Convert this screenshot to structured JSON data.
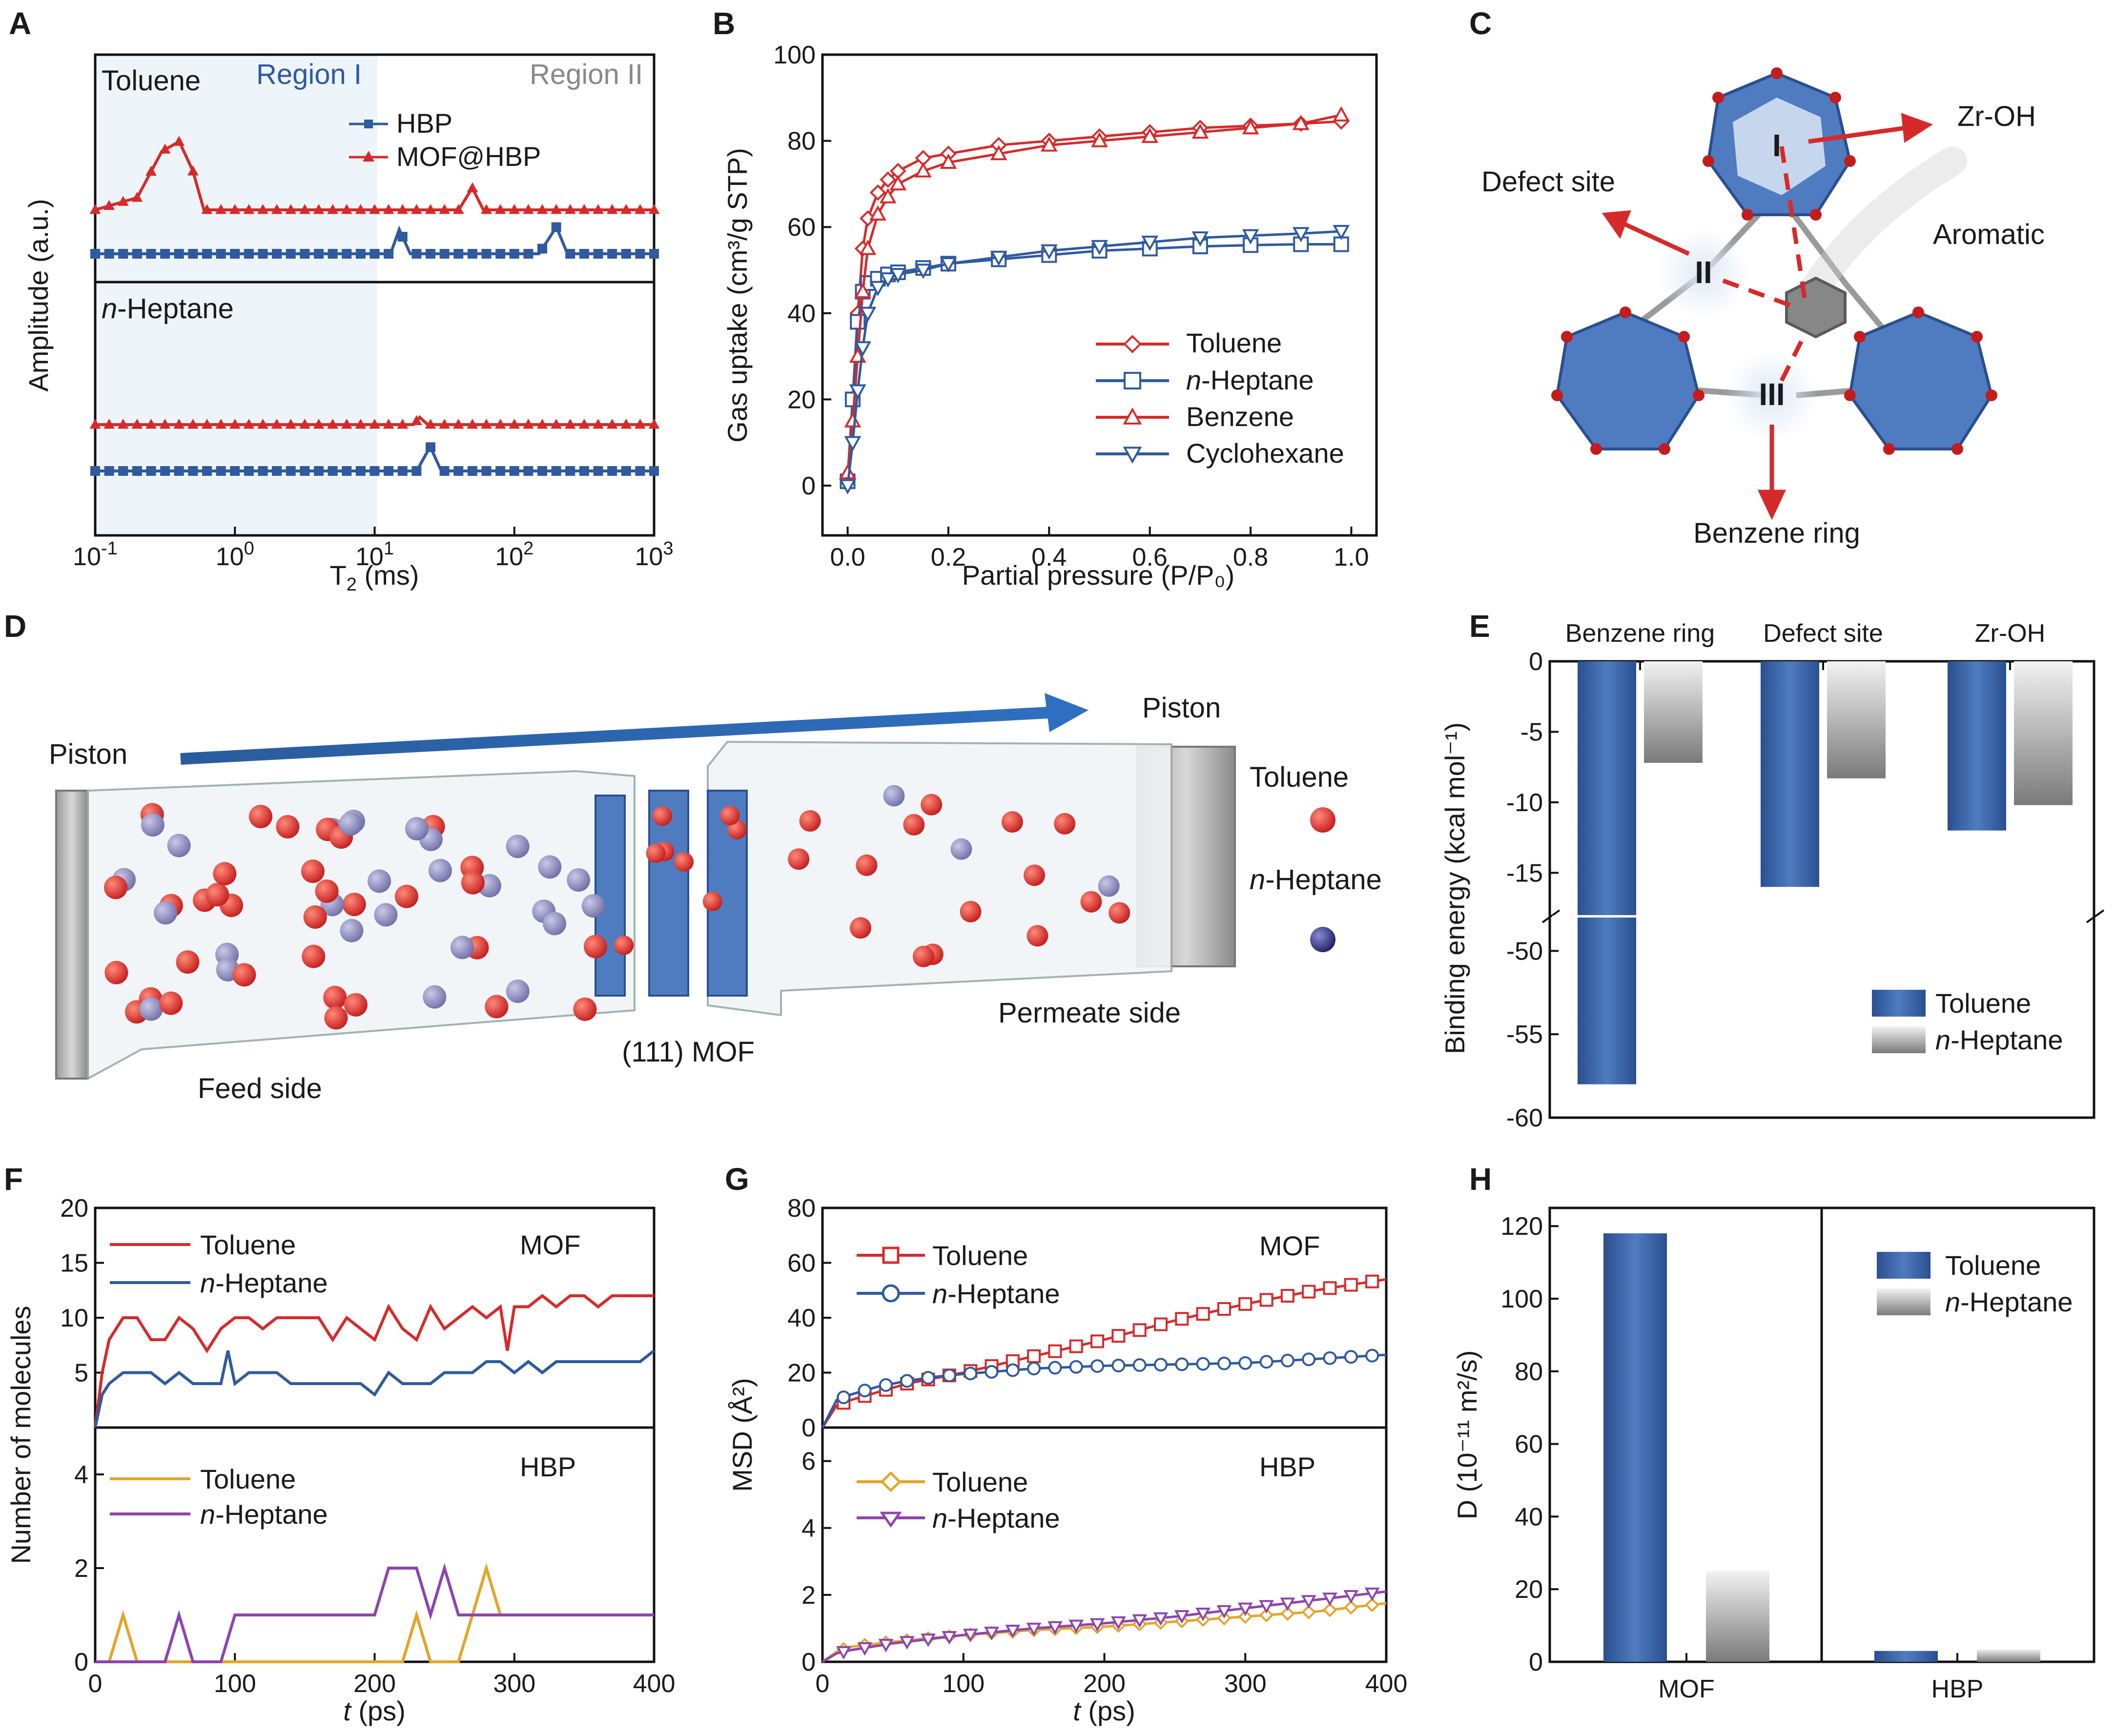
{
  "colors": {
    "red": "#d62a2a",
    "blue": "#2f5a9e",
    "gray": "#8a8a8a",
    "orange": "#e3a52a",
    "purple": "#8e44ad",
    "text": "#1a1a1a"
  },
  "panels": {
    "A": {
      "letter": "A",
      "top_label": "Toluene",
      "bottom_label_prefix": "n",
      "bottom_label_suffix": "-Heptane",
      "region1": "Region I",
      "region2": "Region II",
      "legend": [
        "HBP",
        "MOF@HBP"
      ],
      "ylabel": "Amplitude (a.u.)",
      "xlabel_main": "T",
      "xlabel_sub": "2",
      "xlabel_unit": " (ms)",
      "xtick_base": "10",
      "xtick_exps": [
        "-1",
        "0",
        "1",
        "2",
        "3"
      ]
    },
    "B": {
      "letter": "B",
      "ylabel": "Gas uptake (cm³/g STP)",
      "xlabel": "Partial pressure (P/P₀)",
      "legend": [
        "Toluene",
        "n-Heptane",
        "Benzene",
        "Cyclohexane"
      ],
      "yticks": [
        "0",
        "20",
        "40",
        "60",
        "80",
        "100"
      ],
      "xticks": [
        "0.0",
        "0.2",
        "0.4",
        "0.6",
        "0.8",
        "1.0"
      ]
    },
    "C": {
      "letter": "C",
      "labels": {
        "zroh": "Zr-OH",
        "defect": "Defect site",
        "aromatic": "Aromatic",
        "ring": "Benzene ring"
      },
      "sites": [
        "I",
        "II",
        "III"
      ]
    },
    "D": {
      "letter": "D",
      "piston_left": "Piston",
      "piston_right": "Piston",
      "toluene": "Toluene",
      "heptane_prefix": "n",
      "heptane_suffix": "-Heptane",
      "mof": "(111) MOF",
      "feed": "Feed side",
      "permeate": "Permeate side"
    },
    "E": {
      "letter": "E",
      "categories": [
        "Benzene ring",
        "Defect site",
        "Zr-OH"
      ],
      "ylabel": "Binding energy (kcal mol⁻¹)",
      "yticks_top": [
        "0",
        "-5",
        "-10",
        "-15"
      ],
      "yticks_bottom": [
        "-50",
        "-55",
        "-60"
      ],
      "legend": [
        "Toluene",
        "n-Heptane"
      ]
    },
    "F": {
      "letter": "F",
      "ylabel": "Number of molecules",
      "xlabel_prefix": "t",
      "xlabel_suffix": " (ps)",
      "top_tag": "MOF",
      "bottom_tag": "HBP",
      "legend_top": [
        "Toluene",
        "n-Heptane"
      ],
      "legend_bottom": [
        "Toluene",
        "n-Heptane"
      ],
      "yticks_top": [
        "5",
        "10",
        "15",
        "20"
      ],
      "yticks_bottom": [
        "0",
        "2",
        "4"
      ],
      "xticks": [
        "0",
        "100",
        "200",
        "300",
        "400"
      ]
    },
    "G": {
      "letter": "G",
      "ylabel": "MSD (Å²)",
      "xlabel_prefix": "t",
      "xlabel_suffix": " (ps)",
      "top_tag": "MOF",
      "bottom_tag": "HBP",
      "legend_top": [
        "Toluene",
        "n-Heptane"
      ],
      "legend_bottom": [
        "Toluene",
        "n-Heptane"
      ],
      "yticks_top": [
        "0",
        "20",
        "40",
        "60",
        "80"
      ],
      "yticks_bottom": [
        "0",
        "2",
        "4",
        "6"
      ],
      "xticks": [
        "0",
        "100",
        "200",
        "300",
        "400"
      ]
    },
    "H": {
      "letter": "H",
      "ylabel": "D (10⁻¹¹ m²/s)",
      "categories": [
        "MOF",
        "HBP"
      ],
      "legend": [
        "Toluene",
        "n-Heptane"
      ],
      "yticks": [
        "0",
        "20",
        "40",
        "60",
        "80",
        "100",
        "120"
      ]
    }
  },
  "chart_data": [
    {
      "panel": "A",
      "type": "line",
      "xlabel": "T2 (ms)",
      "ylabel": "Amplitude (a.u.)",
      "xscale": "log",
      "xlim": [
        0.1,
        1000
      ],
      "subplots": [
        {
          "label": "Toluene",
          "series": [
            {
              "name": "HBP",
              "x": [
                0.1,
                13,
                15,
                18,
                150,
                200,
                240,
                1000
              ],
              "y": [
                0,
                0,
                0.5,
                0,
                0,
                0.55,
                0,
                0
              ]
            },
            {
              "name": "MOF@HBP",
              "x": [
                0.1,
                0.2,
                0.3,
                0.4,
                0.5,
                0.6,
                0.7,
                40,
                50,
                60,
                1000
              ],
              "y": [
                0,
                0.25,
                1.2,
                1.4,
                0.8,
                0,
                0,
                0,
                0.45,
                0,
                0
              ]
            }
          ]
        },
        {
          "label": "n-Heptane",
          "series": [
            {
              "name": "HBP",
              "x": [
                0.1,
                20,
                25,
                30,
                1000
              ],
              "y": [
                0,
                0,
                0.5,
                0,
                0
              ]
            },
            {
              "name": "MOF@HBP",
              "x": [
                0.1,
                19,
                21,
                24,
                1000
              ],
              "y": [
                0,
                0,
                0.15,
                0,
                0
              ]
            }
          ]
        }
      ]
    },
    {
      "panel": "B",
      "type": "line",
      "xlabel": "Partial pressure (P/P0)",
      "ylabel": "Gas uptake (cm3/g STP)",
      "xlim": [
        -0.05,
        1.05
      ],
      "ylim": [
        0,
        100
      ],
      "x": [
        0.0,
        0.01,
        0.02,
        0.03,
        0.04,
        0.06,
        0.08,
        0.1,
        0.15,
        0.2,
        0.3,
        0.4,
        0.5,
        0.6,
        0.7,
        0.8,
        0.9,
        0.98
      ],
      "series": [
        {
          "name": "Toluene",
          "values": [
            2,
            20,
            40,
            55,
            62,
            68,
            71,
            73,
            76,
            77,
            79,
            80,
            81,
            82,
            83,
            83.5,
            84,
            84.5
          ]
        },
        {
          "name": "n-Heptane",
          "values": [
            1,
            20,
            38,
            45,
            47,
            48,
            49,
            49.5,
            50.5,
            51.5,
            52.5,
            53.5,
            54.5,
            55,
            55.5,
            55.8,
            56,
            56
          ]
        },
        {
          "name": "Benzene",
          "values": [
            3,
            15,
            30,
            45,
            55,
            63,
            67,
            70,
            73,
            75,
            77,
            79,
            80,
            81,
            82,
            83,
            84,
            86
          ]
        },
        {
          "name": "Cyclohexane",
          "values": [
            0,
            10,
            22,
            32,
            40,
            46,
            48,
            49,
            50,
            51.5,
            53,
            54.5,
            55.5,
            56.5,
            57.5,
            58,
            58.5,
            59
          ]
        }
      ]
    },
    {
      "panel": "E",
      "type": "bar",
      "ylabel": "Binding energy (kcal mol-1)",
      "ylim": [
        -60,
        0
      ],
      "axis_break": [
        -18,
        -48
      ],
      "categories": [
        "Benzene ring",
        "Defect site",
        "Zr-OH"
      ],
      "series": [
        {
          "name": "Toluene",
          "values": [
            -58,
            -16,
            -12
          ]
        },
        {
          "name": "n-Heptane",
          "values": [
            -7.2,
            -8.3,
            -10.2
          ]
        }
      ]
    },
    {
      "panel": "F",
      "type": "line",
      "xlabel": "t (ps)",
      "ylabel": "Number of molecules",
      "xlim": [
        0,
        400
      ],
      "subplots": [
        {
          "label": "MOF",
          "ylim": [
            0,
            20
          ],
          "series": [
            {
              "name": "Toluene",
              "x": [
                0,
                5,
                10,
                15,
                20,
                30,
                40,
                50,
                60,
                70,
                80,
                90,
                100,
                110,
                120,
                130,
                140,
                150,
                160,
                170,
                180,
                190,
                200,
                210,
                220,
                230,
                240,
                250,
                260,
                270,
                280,
                290,
                295,
                300,
                310,
                320,
                330,
                340,
                350,
                360,
                370,
                380,
                390,
                400
              ],
              "values": [
                0,
                5,
                8,
                9,
                10,
                10,
                8,
                8,
                10,
                9,
                7,
                9,
                10,
                10,
                9,
                10,
                10,
                10,
                10,
                8,
                10,
                9,
                8,
                11,
                9,
                8,
                11,
                9,
                10,
                11,
                10,
                11,
                7,
                11,
                11,
                12,
                11,
                12,
                12,
                11,
                12,
                12,
                12,
                12
              ]
            },
            {
              "name": "n-Heptane",
              "x": [
                0,
                5,
                10,
                20,
                30,
                40,
                50,
                60,
                70,
                80,
                90,
                95,
                100,
                110,
                120,
                130,
                140,
                150,
                160,
                170,
                180,
                190,
                200,
                210,
                220,
                230,
                240,
                250,
                260,
                270,
                280,
                290,
                300,
                310,
                320,
                330,
                340,
                350,
                360,
                370,
                380,
                390,
                400
              ],
              "values": [
                0,
                3,
                4,
                5,
                5,
                5,
                4,
                5,
                4,
                4,
                4,
                7,
                4,
                5,
                5,
                5,
                4,
                4,
                4,
                4,
                4,
                4,
                3,
                5,
                4,
                4,
                4,
                5,
                5,
                5,
                6,
                6,
                5,
                6,
                5,
                6,
                6,
                6,
                6,
                6,
                6,
                6,
                7
              ]
            }
          ]
        },
        {
          "label": "HBP",
          "ylim": [
            0,
            5
          ],
          "series": [
            {
              "name": "Toluene",
              "x": [
                0,
                10,
                20,
                30,
                40,
                200,
                220,
                230,
                240,
                250,
                260,
                270,
                280,
                290,
                300,
                400
              ],
              "values": [
                0,
                0,
                1,
                0,
                0,
                0,
                0,
                1,
                0,
                0,
                0,
                1,
                2,
                1,
                1,
                1
              ]
            },
            {
              "name": "n-Heptane",
              "x": [
                0,
                50,
                60,
                70,
                90,
                100,
                200,
                210,
                230,
                240,
                250,
                260,
                270,
                280,
                300,
                400
              ],
              "values": [
                0,
                0,
                1,
                0,
                0,
                1,
                1,
                2,
                2,
                1,
                2,
                1,
                1,
                1,
                1,
                1
              ]
            }
          ]
        }
      ]
    },
    {
      "panel": "G",
      "type": "line",
      "xlabel": "t (ps)",
      "ylabel": "MSD (Å2)",
      "xlim": [
        0,
        400
      ],
      "subplots": [
        {
          "label": "MOF",
          "ylim": [
            0,
            80
          ],
          "series": [
            {
              "name": "Toluene",
              "x": [
                0,
                10,
                20,
                40,
                60,
                80,
                100,
                150,
                200,
                250,
                300,
                350,
                400
              ],
              "values": [
                0,
                8,
                10,
                13,
                16,
                18,
                20,
                26,
                32,
                39,
                45,
                50,
                54
              ]
            },
            {
              "name": "n-Heptane",
              "x": [
                0,
                10,
                20,
                40,
                60,
                80,
                100,
                150,
                200,
                250,
                300,
                350,
                400
              ],
              "values": [
                0,
                10,
                12,
                15,
                17,
                18.5,
                19.5,
                21.5,
                22.5,
                23,
                23.5,
                25,
                26.5
              ]
            }
          ]
        },
        {
          "label": "HBP",
          "ylim": [
            0,
            7
          ],
          "series": [
            {
              "name": "Toluene",
              "x": [
                0,
                10,
                20,
                50,
                100,
                150,
                200,
                250,
                300,
                350,
                400
              ],
              "values": [
                0,
                0.3,
                0.45,
                0.6,
                0.8,
                0.95,
                1.05,
                1.2,
                1.35,
                1.5,
                1.75
              ]
            },
            {
              "name": "n-Heptane",
              "x": [
                0,
                10,
                20,
                50,
                100,
                150,
                200,
                250,
                300,
                350,
                400
              ],
              "values": [
                0,
                0.25,
                0.35,
                0.55,
                0.8,
                1.0,
                1.15,
                1.35,
                1.6,
                1.85,
                2.1
              ]
            }
          ]
        }
      ]
    },
    {
      "panel": "H",
      "type": "bar",
      "ylabel": "D (10-11 m2/s)",
      "ylim": [
        0,
        125
      ],
      "categories": [
        "MOF",
        "HBP"
      ],
      "series": [
        {
          "name": "Toluene",
          "values": [
            118,
            3
          ]
        },
        {
          "name": "n-Heptane",
          "values": [
            25,
            3.5
          ]
        }
      ]
    }
  ]
}
